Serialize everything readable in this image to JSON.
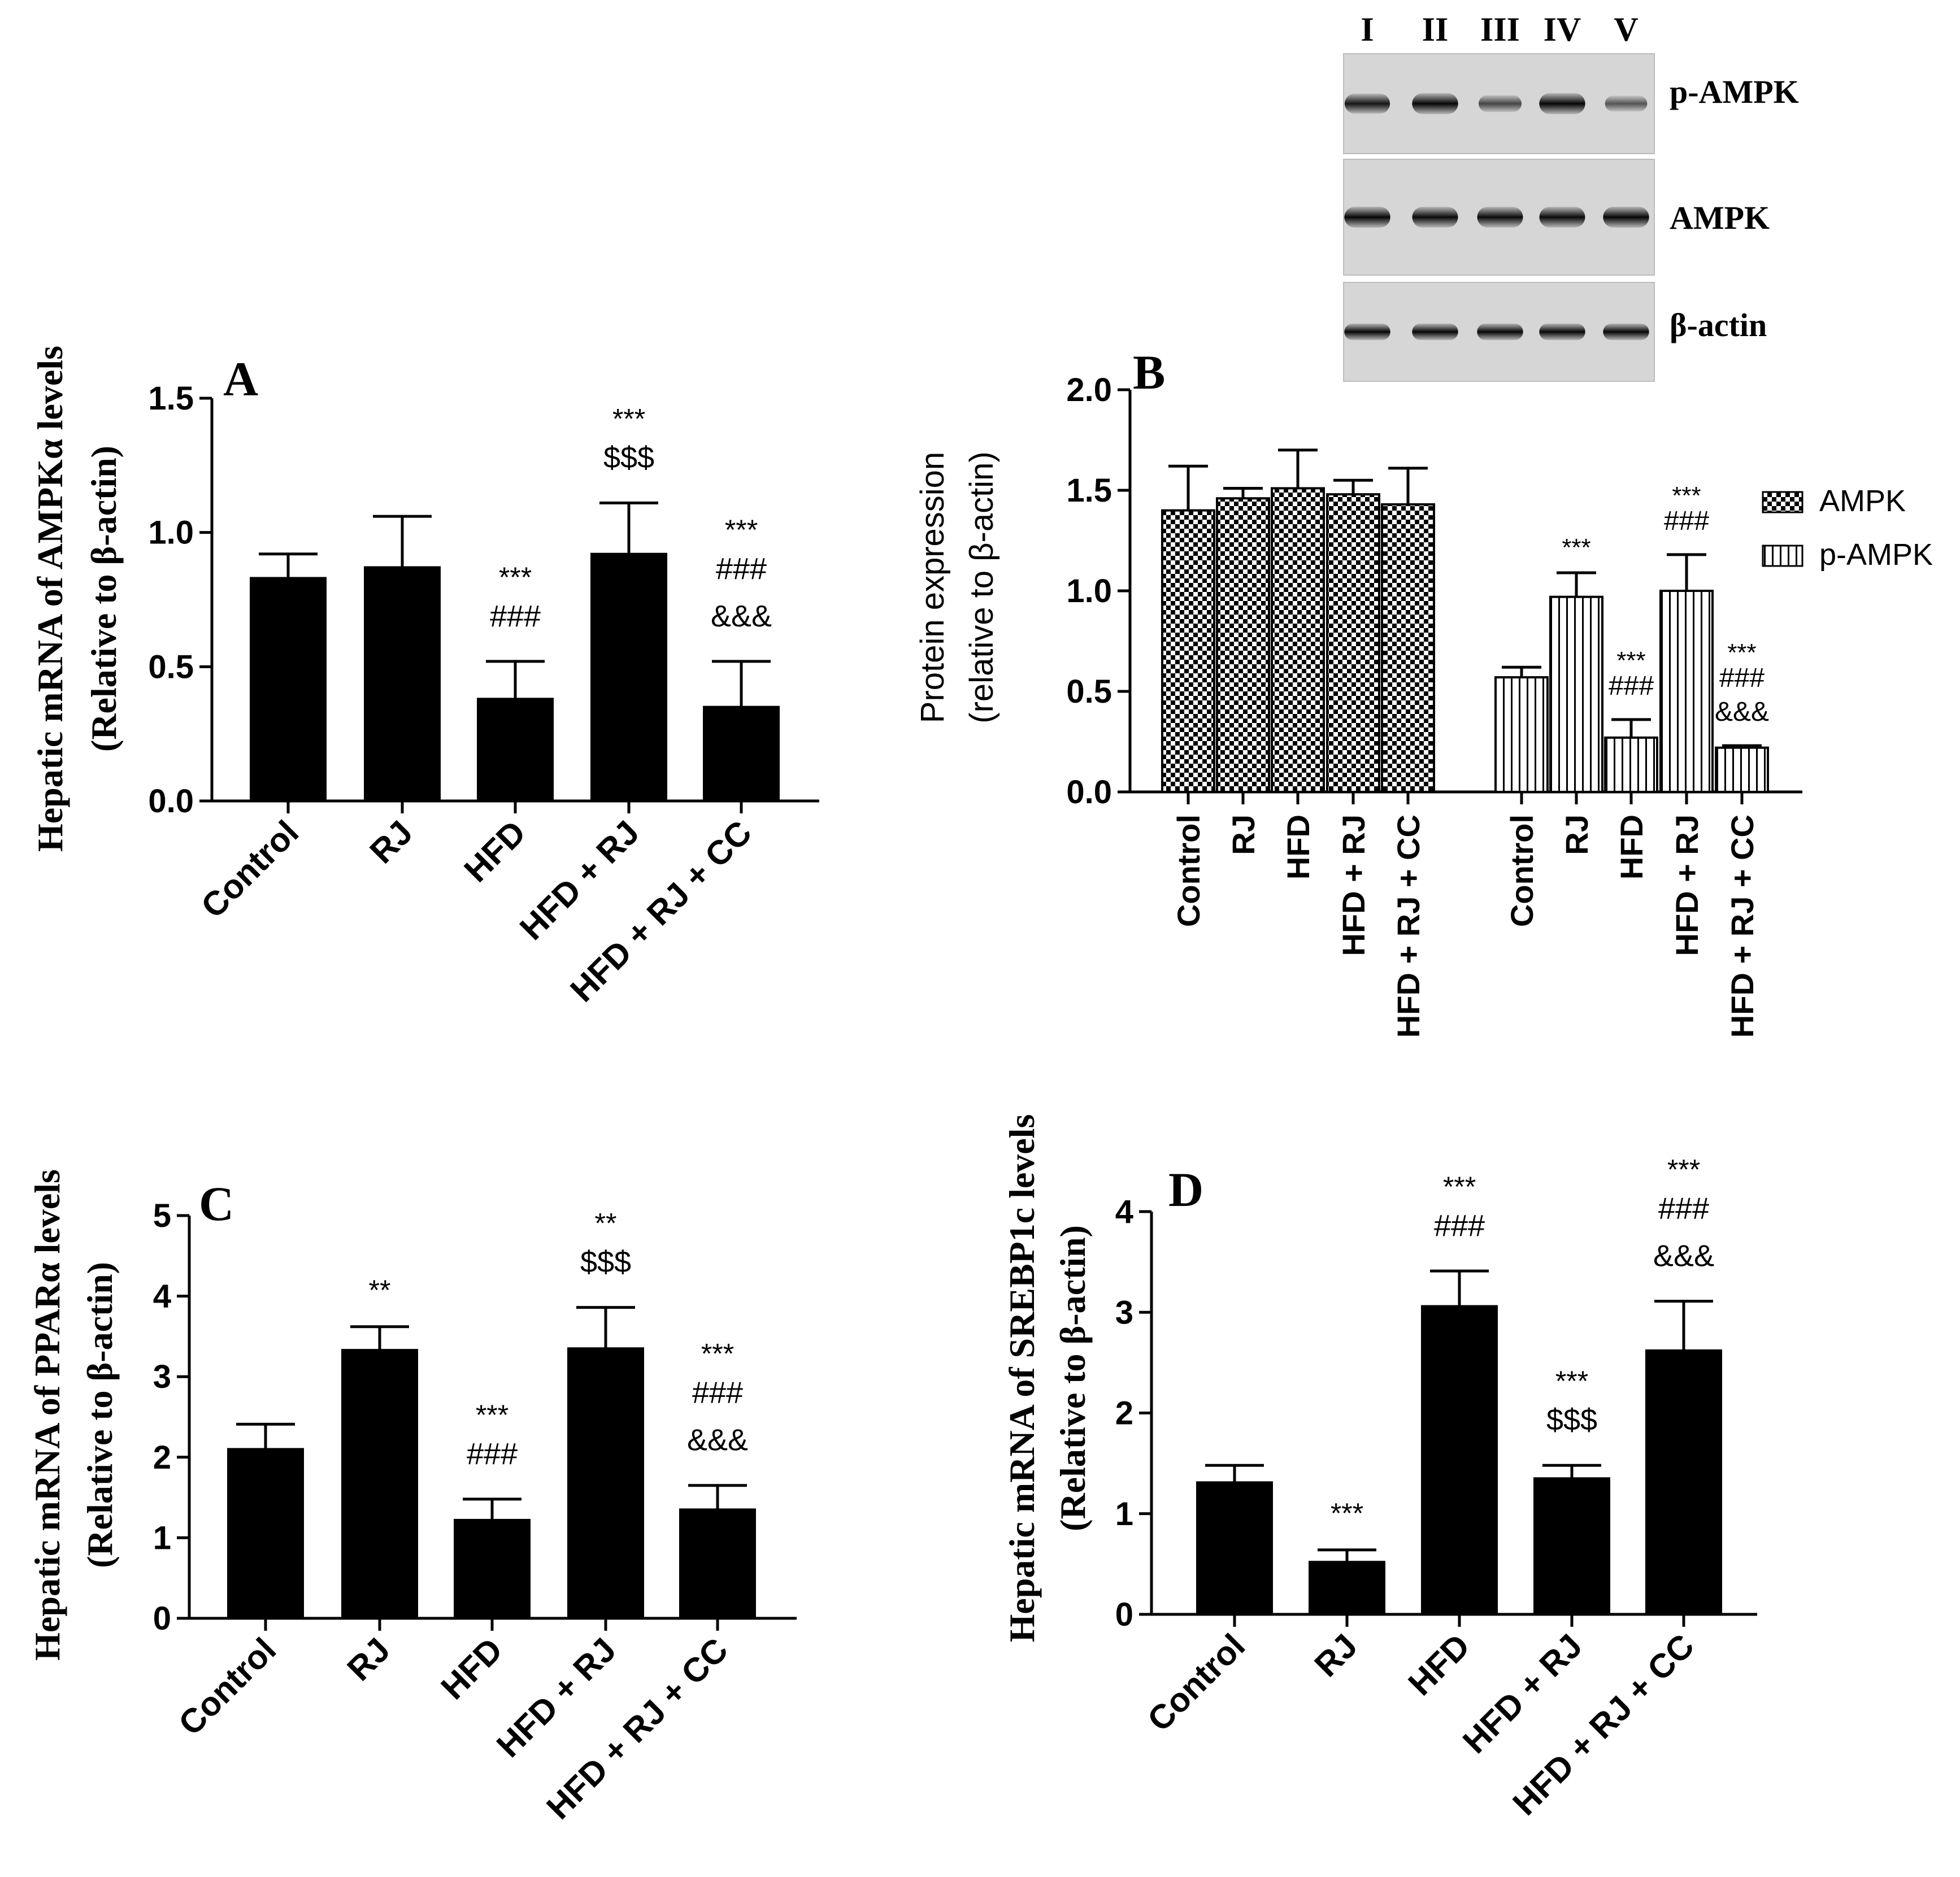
{
  "blot": {
    "lanes": [
      "I",
      "II",
      "III",
      "IV",
      "V"
    ],
    "rows": [
      {
        "label": "p-AMPK",
        "intensity": [
          0.85,
          0.95,
          0.5,
          0.95,
          0.4
        ]
      },
      {
        "label": "AMPK",
        "intensity": [
          0.95,
          0.92,
          0.92,
          0.92,
          0.95
        ]
      },
      {
        "label": "β-actin",
        "intensity": [
          0.95,
          0.95,
          0.95,
          0.95,
          0.95
        ]
      }
    ]
  },
  "chart_data": [
    {
      "panel": "A",
      "type": "bar",
      "ylabel": [
        "Hepatic mRNA of AMPKα levels",
        "(Relative to β-actin)"
      ],
      "ylim": [
        0,
        1.5
      ],
      "yticks": [
        "0.0",
        "0.5",
        "1.0",
        "1.5"
      ],
      "categories": [
        "Control",
        "RJ",
        "HFD",
        "HFD + RJ",
        "HFD + RJ + CC"
      ],
      "values": [
        0.83,
        0.87,
        0.38,
        0.92,
        0.35
      ],
      "errors": [
        0.09,
        0.19,
        0.14,
        0.19,
        0.17
      ],
      "annotations": [
        [],
        [],
        [
          "***",
          "###"
        ],
        [
          "***",
          "$$$"
        ],
        [
          "***",
          "###",
          "&&&"
        ]
      ]
    },
    {
      "panel": "B",
      "type": "bar",
      "ylabel": [
        "Protein expression",
        "(relative to β-actin)"
      ],
      "ylim": [
        0,
        2.0
      ],
      "yticks": [
        "0.0",
        "0.5",
        "1.0",
        "1.5",
        "2.0"
      ],
      "categories": [
        "Control",
        "RJ",
        "HFD",
        "HFD + RJ",
        "HFD + RJ + CC"
      ],
      "series": [
        {
          "name": "AMPK",
          "pattern": "checker",
          "values": [
            1.4,
            1.46,
            1.51,
            1.48,
            1.43
          ],
          "errors": [
            0.22,
            0.05,
            0.19,
            0.07,
            0.18
          ],
          "annotations": [
            [],
            [],
            [],
            [],
            []
          ]
        },
        {
          "name": "p-AMPK",
          "pattern": "vstripe",
          "values": [
            0.57,
            0.97,
            0.27,
            1.0,
            0.22
          ],
          "errors": [
            0.05,
            0.12,
            0.09,
            0.18,
            0.01
          ],
          "annotations": [
            [],
            [
              "***"
            ],
            [
              "***",
              "###"
            ],
            [
              "***",
              "###"
            ],
            [
              "***",
              "###",
              "&&&"
            ]
          ]
        }
      ]
    },
    {
      "panel": "C",
      "type": "bar",
      "ylabel": [
        "Hepatic mRNA of PPARα levels",
        "(Relative to β-actin)"
      ],
      "ylim": [
        0,
        5
      ],
      "yticks": [
        "0",
        "1",
        "2",
        "3",
        "4",
        "5"
      ],
      "categories": [
        "Control",
        "RJ",
        "HFD",
        "HFD + RJ",
        "HFD + RJ + CC"
      ],
      "values": [
        2.1,
        3.33,
        1.22,
        3.35,
        1.35
      ],
      "errors": [
        0.31,
        0.29,
        0.26,
        0.51,
        0.3
      ],
      "annotations": [
        [],
        [
          "**"
        ],
        [
          "***",
          "###"
        ],
        [
          "**",
          "$$$"
        ],
        [
          "***",
          "###",
          "&&&"
        ]
      ]
    },
    {
      "panel": "D",
      "type": "bar",
      "ylabel": [
        "Hepatic mRNA of SREBP1c levels",
        "(Relative to β-actin)"
      ],
      "ylim": [
        0,
        4
      ],
      "yticks": [
        "0",
        "1",
        "2",
        "3",
        "4"
      ],
      "categories": [
        "Control",
        "RJ",
        "HFD",
        "HFD + RJ",
        "HFD + RJ + CC"
      ],
      "values": [
        1.31,
        0.52,
        3.06,
        1.35,
        2.62
      ],
      "errors": [
        0.17,
        0.12,
        0.35,
        0.13,
        0.49
      ],
      "annotations": [
        [],
        [
          "***"
        ],
        [
          "***",
          "###"
        ],
        [
          "***",
          "$$$"
        ],
        [
          "***",
          "###",
          "&&&"
        ]
      ]
    }
  ]
}
